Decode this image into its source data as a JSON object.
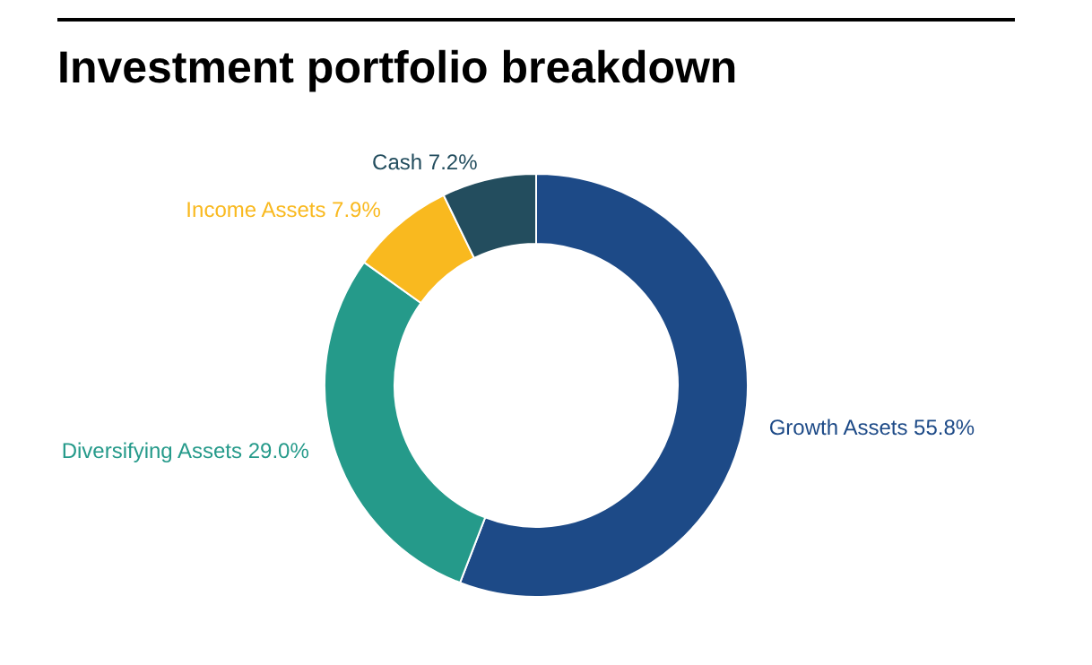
{
  "chart_data": {
    "type": "donut",
    "title": "Investment portfolio breakdown",
    "categories": [
      "Growth Assets",
      "Diversifying Assets",
      "Income Assets",
      "Cash"
    ],
    "values": [
      55.8,
      29.0,
      7.9,
      7.2
    ],
    "value_labels": [
      "55.8%",
      "29.0%",
      "7.9%",
      "7.2%"
    ],
    "colors": [
      "#1d4a87",
      "#259a8a",
      "#f9b91f",
      "#234d5e"
    ]
  }
}
